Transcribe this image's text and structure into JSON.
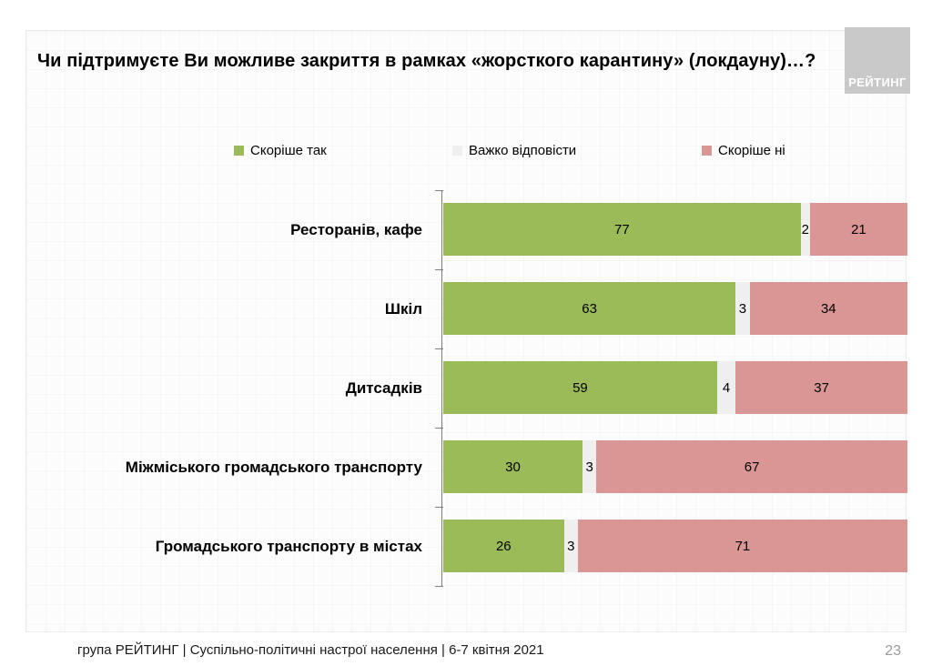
{
  "chart_data": {
    "type": "bar",
    "orientation": "horizontal",
    "stacked": true,
    "title": "Чи підтримуєте Ви можливе закриття в рамках «жорсткого карантину» (локдауну)…?",
    "categories": [
      "Ресторанів, кафе",
      "Шкіл",
      "Дитсадків",
      "Міжміського громадського транспорту",
      "Громадського транспорту в містах"
    ],
    "series": [
      {
        "name": "Скоріше так",
        "color": "#9BBB59",
        "values": [
          77,
          63,
          59,
          30,
          26
        ]
      },
      {
        "name": "Важко відповісти",
        "color": "#EFEFEF",
        "values": [
          2,
          3,
          4,
          3,
          3
        ]
      },
      {
        "name": "Скоріше ні",
        "color": "#D99694",
        "values": [
          21,
          34,
          37,
          67,
          71
        ]
      }
    ],
    "xlim": [
      0,
      100
    ],
    "legend_position": "top",
    "value_labels": "center",
    "axis_color": "#7F7F7F",
    "grid": false
  },
  "logo": {
    "text": "РЕЙТИНГ",
    "bg": "#C9C9C9"
  },
  "footer": {
    "source_line": "група РЕЙТИНГ | Суспільно-політичні настрої населення | 6-7 квітня 2021",
    "page_number": "23"
  }
}
